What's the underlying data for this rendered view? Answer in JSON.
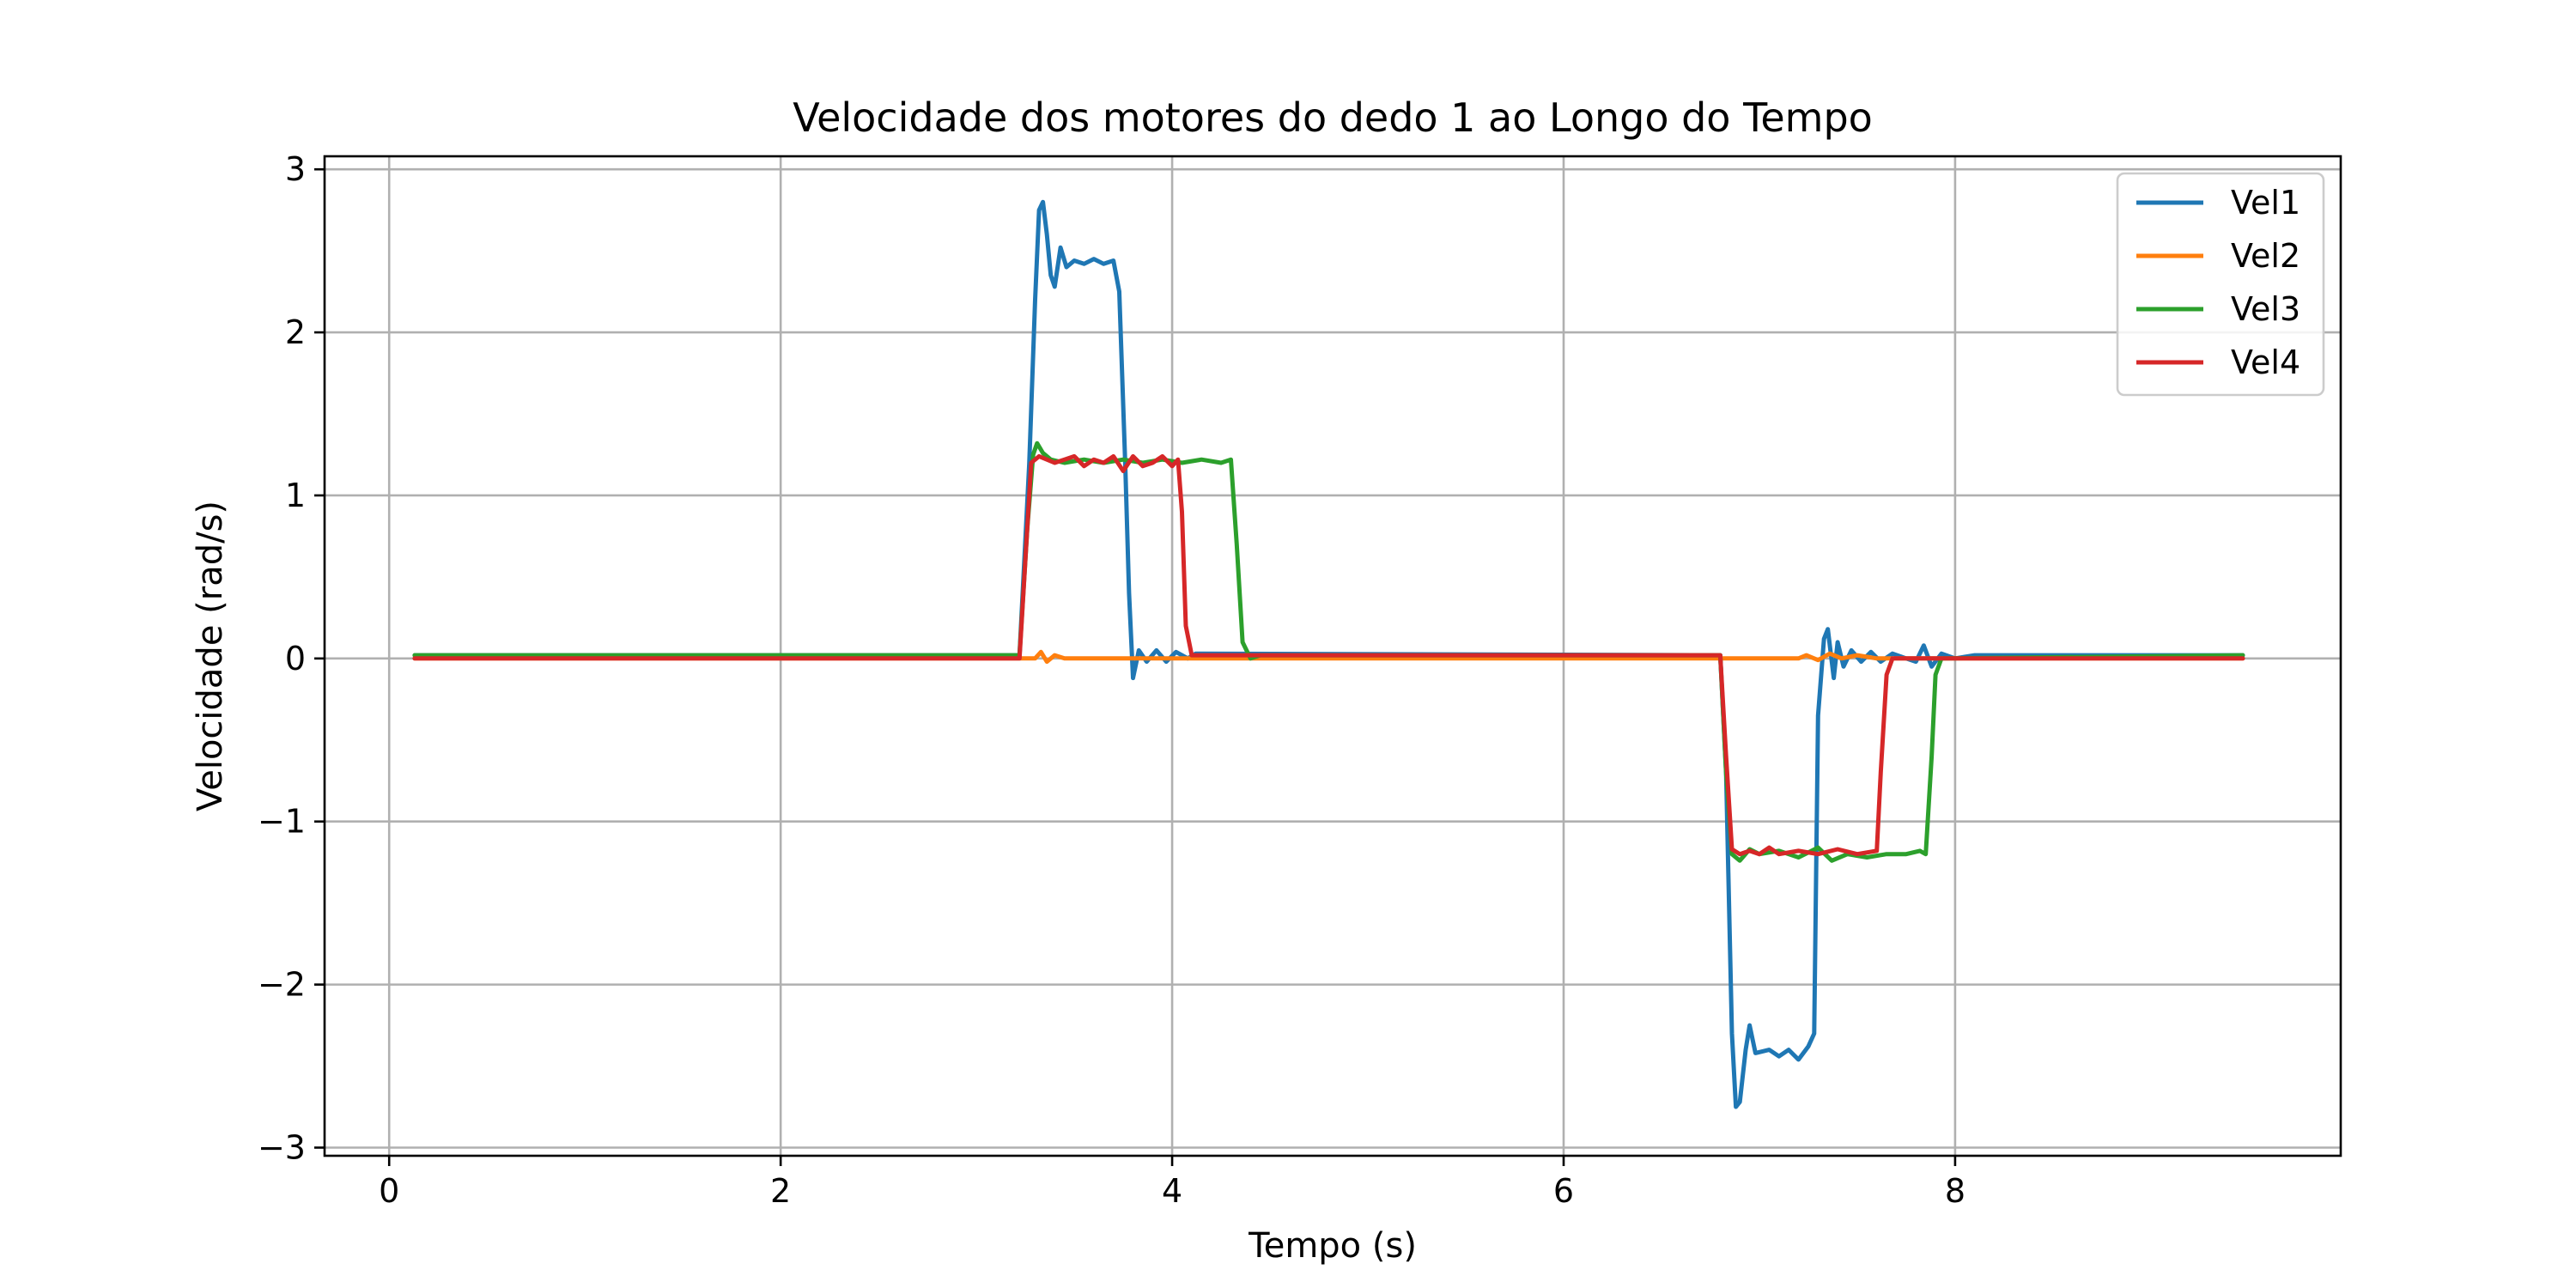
{
  "chart_data": {
    "type": "line",
    "title": "Velocidade dos motores do dedo 1 ao Longo do Tempo",
    "xlabel": "Tempo (s)",
    "ylabel": "Velocidade (rad/s)",
    "xlim": [
      -0.33,
      9.97
    ],
    "ylim": [
      -3.05,
      3.08
    ],
    "xticks": [
      0,
      2,
      4,
      6,
      8
    ],
    "xtick_labels": [
      "0",
      "2",
      "4",
      "6",
      "8"
    ],
    "yticks": [
      -3,
      -2,
      -1,
      0,
      1,
      2,
      3
    ],
    "ytick_labels": [
      "−3",
      "−2",
      "−1",
      "0",
      "1",
      "2",
      "3"
    ],
    "grid": true,
    "legend_position": "top-right",
    "series": [
      {
        "name": "Vel1",
        "color": "#1f77b4",
        "points": [
          [
            0.13,
            0.02
          ],
          [
            3.22,
            0.02
          ],
          [
            3.27,
            1.2
          ],
          [
            3.3,
            2.2
          ],
          [
            3.32,
            2.75
          ],
          [
            3.34,
            2.8
          ],
          [
            3.36,
            2.6
          ],
          [
            3.38,
            2.35
          ],
          [
            3.4,
            2.28
          ],
          [
            3.43,
            2.52
          ],
          [
            3.46,
            2.4
          ],
          [
            3.5,
            2.44
          ],
          [
            3.55,
            2.42
          ],
          [
            3.6,
            2.45
          ],
          [
            3.65,
            2.42
          ],
          [
            3.7,
            2.44
          ],
          [
            3.73,
            2.25
          ],
          [
            3.76,
            1.2
          ],
          [
            3.78,
            0.4
          ],
          [
            3.8,
            -0.12
          ],
          [
            3.83,
            0.05
          ],
          [
            3.87,
            -0.02
          ],
          [
            3.92,
            0.05
          ],
          [
            3.97,
            -0.02
          ],
          [
            4.02,
            0.04
          ],
          [
            4.08,
            0.0
          ],
          [
            4.12,
            0.03
          ],
          [
            6.8,
            0.02
          ],
          [
            6.83,
            -0.7
          ],
          [
            6.86,
            -2.3
          ],
          [
            6.88,
            -2.75
          ],
          [
            6.9,
            -2.72
          ],
          [
            6.93,
            -2.4
          ],
          [
            6.95,
            -2.25
          ],
          [
            6.98,
            -2.42
          ],
          [
            7.05,
            -2.4
          ],
          [
            7.1,
            -2.44
          ],
          [
            7.15,
            -2.4
          ],
          [
            7.2,
            -2.46
          ],
          [
            7.25,
            -2.38
          ],
          [
            7.28,
            -2.3
          ],
          [
            7.3,
            -0.35
          ],
          [
            7.33,
            0.12
          ],
          [
            7.35,
            0.18
          ],
          [
            7.38,
            -0.12
          ],
          [
            7.4,
            0.1
          ],
          [
            7.43,
            -0.05
          ],
          [
            7.47,
            0.05
          ],
          [
            7.52,
            -0.02
          ],
          [
            7.57,
            0.04
          ],
          [
            7.62,
            -0.02
          ],
          [
            7.68,
            0.03
          ],
          [
            7.75,
            0.0
          ],
          [
            7.8,
            -0.02
          ],
          [
            7.84,
            0.08
          ],
          [
            7.88,
            -0.05
          ],
          [
            7.93,
            0.03
          ],
          [
            8.0,
            0.0
          ],
          [
            8.1,
            0.02
          ],
          [
            9.47,
            0.02
          ]
        ]
      },
      {
        "name": "Vel2",
        "color": "#ff7f0e",
        "points": [
          [
            0.13,
            0.0
          ],
          [
            3.25,
            0.0
          ],
          [
            3.3,
            0.0
          ],
          [
            3.33,
            0.04
          ],
          [
            3.36,
            -0.02
          ],
          [
            3.4,
            0.02
          ],
          [
            3.45,
            0.0
          ],
          [
            6.8,
            0.0
          ],
          [
            7.2,
            0.0
          ],
          [
            7.24,
            0.02
          ],
          [
            7.3,
            -0.01
          ],
          [
            7.36,
            0.03
          ],
          [
            7.42,
            0.0
          ],
          [
            7.5,
            0.02
          ],
          [
            7.6,
            0.0
          ],
          [
            9.47,
            0.0
          ]
        ]
      },
      {
        "name": "Vel3",
        "color": "#2ca02c",
        "points": [
          [
            0.13,
            0.02
          ],
          [
            3.22,
            0.02
          ],
          [
            3.26,
            0.8
          ],
          [
            3.29,
            1.25
          ],
          [
            3.31,
            1.32
          ],
          [
            3.34,
            1.26
          ],
          [
            3.38,
            1.22
          ],
          [
            3.45,
            1.2
          ],
          [
            3.55,
            1.22
          ],
          [
            3.65,
            1.2
          ],
          [
            3.75,
            1.22
          ],
          [
            3.85,
            1.2
          ],
          [
            3.95,
            1.22
          ],
          [
            4.05,
            1.2
          ],
          [
            4.15,
            1.22
          ],
          [
            4.25,
            1.2
          ],
          [
            4.3,
            1.22
          ],
          [
            4.33,
            0.7
          ],
          [
            4.36,
            0.1
          ],
          [
            4.4,
            0.0
          ],
          [
            4.45,
            0.02
          ],
          [
            6.8,
            0.02
          ],
          [
            6.83,
            -0.7
          ],
          [
            6.86,
            -1.2
          ],
          [
            6.9,
            -1.24
          ],
          [
            6.95,
            -1.17
          ],
          [
            7.0,
            -1.2
          ],
          [
            7.1,
            -1.18
          ],
          [
            7.2,
            -1.22
          ],
          [
            7.3,
            -1.16
          ],
          [
            7.37,
            -1.24
          ],
          [
            7.45,
            -1.2
          ],
          [
            7.55,
            -1.22
          ],
          [
            7.65,
            -1.2
          ],
          [
            7.75,
            -1.2
          ],
          [
            7.82,
            -1.18
          ],
          [
            7.85,
            -1.2
          ],
          [
            7.88,
            -0.6
          ],
          [
            7.9,
            -0.1
          ],
          [
            7.93,
            0.0
          ],
          [
            9.47,
            0.02
          ]
        ]
      },
      {
        "name": "Vel4",
        "color": "#d62728",
        "points": [
          [
            0.13,
            0.0
          ],
          [
            3.22,
            0.0
          ],
          [
            3.25,
            0.6
          ],
          [
            3.28,
            1.2
          ],
          [
            3.32,
            1.24
          ],
          [
            3.4,
            1.2
          ],
          [
            3.45,
            1.22
          ],
          [
            3.5,
            1.24
          ],
          [
            3.55,
            1.18
          ],
          [
            3.6,
            1.22
          ],
          [
            3.65,
            1.2
          ],
          [
            3.7,
            1.24
          ],
          [
            3.75,
            1.15
          ],
          [
            3.8,
            1.24
          ],
          [
            3.85,
            1.18
          ],
          [
            3.9,
            1.2
          ],
          [
            3.95,
            1.24
          ],
          [
            4.0,
            1.18
          ],
          [
            4.03,
            1.22
          ],
          [
            4.05,
            0.9
          ],
          [
            4.07,
            0.2
          ],
          [
            4.1,
            0.02
          ],
          [
            6.8,
            0.02
          ],
          [
            6.83,
            -0.6
          ],
          [
            6.86,
            -1.17
          ],
          [
            6.9,
            -1.2
          ],
          [
            6.95,
            -1.18
          ],
          [
            7.0,
            -1.2
          ],
          [
            7.05,
            -1.16
          ],
          [
            7.1,
            -1.2
          ],
          [
            7.2,
            -1.18
          ],
          [
            7.3,
            -1.2
          ],
          [
            7.4,
            -1.17
          ],
          [
            7.5,
            -1.2
          ],
          [
            7.6,
            -1.18
          ],
          [
            7.62,
            -0.7
          ],
          [
            7.65,
            -0.1
          ],
          [
            7.68,
            0.0
          ],
          [
            9.47,
            0.0
          ]
        ]
      }
    ]
  }
}
